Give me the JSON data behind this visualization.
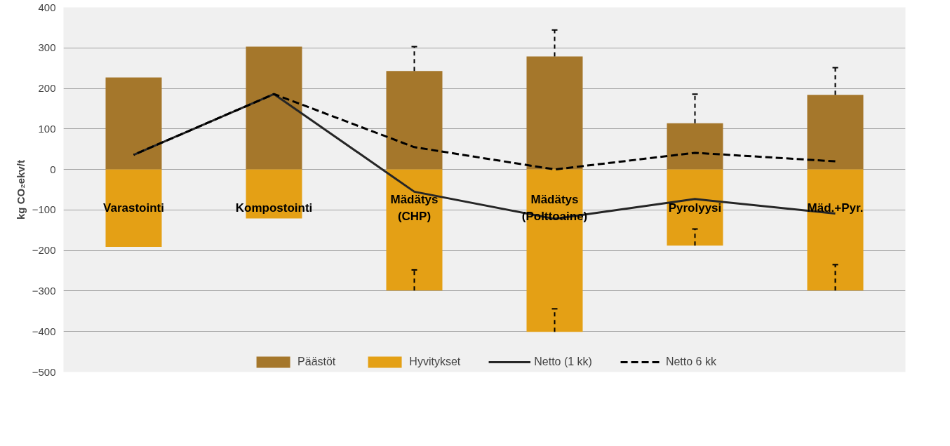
{
  "chart_data": {
    "type": "bar",
    "stacked": true,
    "ylabel": "kg CO₂ekv/t",
    "categories": [
      "Varastointi",
      "Kompostointi",
      "Mädätys\n(CHP)",
      "Mädätys\n(Polttoaine)",
      "Pyrolyysi",
      "Mäd.+Pyr."
    ],
    "series": [
      {
        "name": "Päästöt",
        "color": "#a5772b",
        "values": [
          227,
          303,
          243,
          279,
          114,
          184
        ],
        "errors": [
          null,
          null,
          [
            243,
            303
          ],
          [
            279,
            344
          ],
          [
            114,
            186
          ],
          [
            184,
            251
          ]
        ]
      },
      {
        "name": "Hyvitykset",
        "color": "#e4a015",
        "values": [
          -191,
          -121,
          -299,
          -401,
          -188,
          -299
        ],
        "errors": [
          null,
          null,
          [
            -299,
            -248
          ],
          [
            -401,
            -344
          ],
          [
            -188,
            -147
          ],
          [
            -299,
            -235
          ]
        ]
      },
      {
        "name": "Netto (1 kk)",
        "type": "line",
        "color": "#262626",
        "line_style": "solid",
        "values": [
          36,
          186,
          -55,
          -122,
          -73,
          -109
        ]
      },
      {
        "name": "Netto 6 kk",
        "type": "line",
        "color": "#000000",
        "line_style": "dashed",
        "values": [
          36,
          186,
          55,
          0,
          41,
          20
        ]
      }
    ],
    "ylim": [
      -500,
      400
    ],
    "yticks": [
      -500,
      -400,
      -300,
      -200,
      -100,
      0,
      100,
      200,
      300,
      400
    ],
    "grid": "y",
    "legend": "bottom"
  }
}
